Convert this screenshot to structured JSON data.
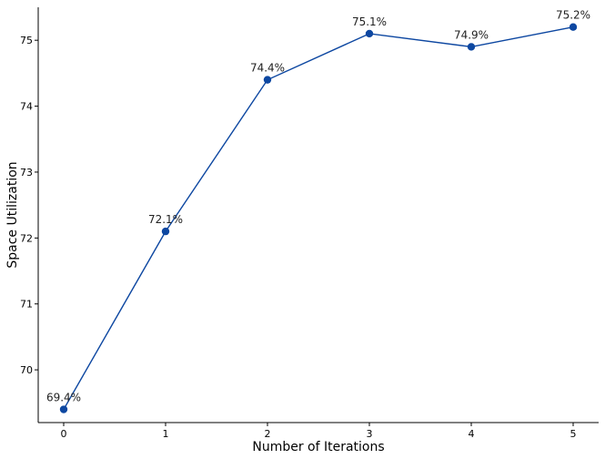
{
  "chart_data": {
    "type": "line",
    "title": "",
    "xlabel": "Number of Iterations",
    "ylabel": "Space Utilization",
    "x": [
      0,
      1,
      2,
      3,
      4,
      5
    ],
    "xticks": [
      "0",
      "1",
      "2",
      "3",
      "4",
      "5"
    ],
    "yticks": [
      "70",
      "71",
      "72",
      "73",
      "74",
      "75"
    ],
    "ylim": [
      69.2,
      75.5
    ],
    "xlim": [
      -0.25,
      5.25
    ],
    "grid": false,
    "series": [
      {
        "values": [
          69.4,
          72.1,
          74.4,
          75.1,
          74.9,
          75.2
        ],
        "labels": [
          "69.4%",
          "72.1%",
          "74.4%",
          "75.1%",
          "74.9%",
          "75.2%"
        ],
        "color": "#0d47a1"
      }
    ]
  }
}
